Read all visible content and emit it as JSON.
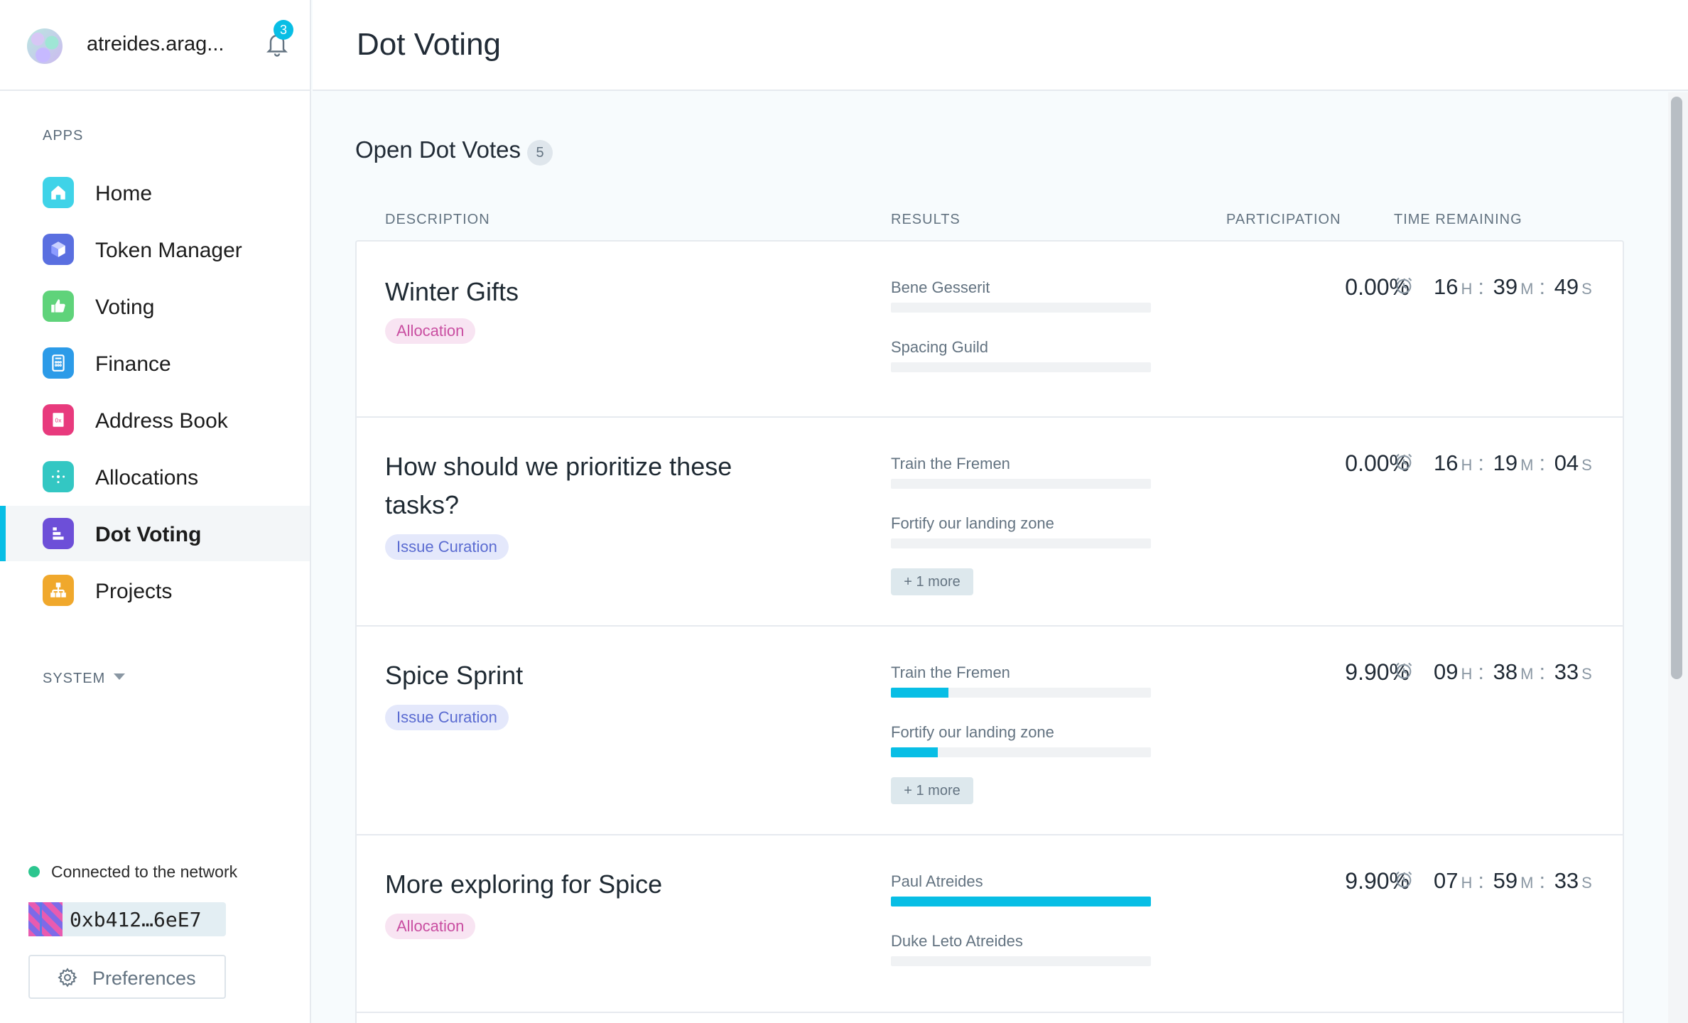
{
  "org": {
    "name": "atreides.arag...",
    "notifications": "3"
  },
  "sidebar": {
    "apps_label": "APPS",
    "system_label": "SYSTEM",
    "items": [
      {
        "label": "Home",
        "icon": "home-icon",
        "color": "#3fd3e8"
      },
      {
        "label": "Token Manager",
        "icon": "token-icon",
        "color": "#5a6fe0"
      },
      {
        "label": "Voting",
        "icon": "voting-icon",
        "color": "#5fd37a"
      },
      {
        "label": "Finance",
        "icon": "finance-icon",
        "color": "#2c9be8"
      },
      {
        "label": "Address Book",
        "icon": "address-book-icon",
        "color": "#e83a7d"
      },
      {
        "label": "Allocations",
        "icon": "allocations-icon",
        "color": "#33c7c3"
      },
      {
        "label": "Dot Voting",
        "icon": "dot-voting-icon",
        "color": "#6d4fd8"
      },
      {
        "label": "Projects",
        "icon": "projects-icon",
        "color": "#f0a82c"
      }
    ],
    "active": "Dot Voting",
    "status": "Connected to the network",
    "account": "0xb412…6eE7",
    "preferences": "Preferences"
  },
  "page": {
    "title": "Dot Voting"
  },
  "votes": {
    "section_title": "Open Dot Votes",
    "count": "5",
    "columns": {
      "description": "DESCRIPTION",
      "results": "RESULTS",
      "participation": "PARTICIPATION",
      "time": "TIME REMAINING"
    },
    "rows": [
      {
        "title": "Winter Gifts",
        "tag": "Allocation",
        "options": [
          {
            "label": "Bene Gesserit",
            "fill": 0
          },
          {
            "label": "Spacing Guild",
            "fill": 0
          }
        ],
        "more": "",
        "participation": "0.00%",
        "time": {
          "h": "16",
          "m": "39",
          "s": "49"
        }
      },
      {
        "title": "How should we prioritize these tasks?",
        "tag": "Issue Curation",
        "options": [
          {
            "label": "Train the Fremen",
            "fill": 0
          },
          {
            "label": "Fortify our landing zone",
            "fill": 0
          }
        ],
        "more": "+ 1 more",
        "participation": "0.00%",
        "time": {
          "h": "16",
          "m": "19",
          "s": "04"
        }
      },
      {
        "title": "Spice Sprint",
        "tag": "Issue Curation",
        "options": [
          {
            "label": "Train the Fremen",
            "fill": 0.22
          },
          {
            "label": "Fortify our landing zone",
            "fill": 0.18
          }
        ],
        "more": "+ 1 more",
        "participation": "9.90%",
        "time": {
          "h": "09",
          "m": "38",
          "s": "33"
        }
      },
      {
        "title": "More exploring for Spice",
        "tag": "Allocation",
        "options": [
          {
            "label": "Paul Atreides",
            "fill": 1.0
          },
          {
            "label": "Duke Leto Atreides",
            "fill": 0
          }
        ],
        "more": "",
        "participation": "9.90%",
        "time": {
          "h": "07",
          "m": "59",
          "s": "33"
        }
      }
    ],
    "time_units": {
      "h": "H",
      "m": "M",
      "s": "S"
    }
  }
}
